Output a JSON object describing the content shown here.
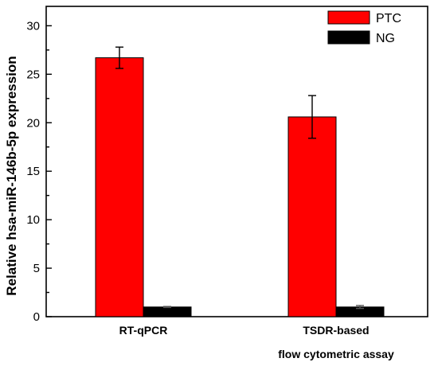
{
  "chart_data": {
    "type": "bar",
    "title": "",
    "xlabel": "",
    "ylabel": "Relative hsa-miR-146b-5p expression",
    "ylim": [
      0,
      32
    ],
    "yticks": [
      0,
      5,
      10,
      15,
      20,
      25,
      30
    ],
    "grid": false,
    "legend_position": "top-right",
    "categories": [
      "RT-qPCR",
      "TSDR-based flow cytometric assay"
    ],
    "category_label_lines": [
      [
        "RT-qPCR"
      ],
      [
        "TSDR-based",
        "flow cytometric assay"
      ]
    ],
    "series": [
      {
        "name": "PTC",
        "color": "#ff0000",
        "values": [
          26.7,
          20.6
        ],
        "errors": [
          1.1,
          2.2
        ]
      },
      {
        "name": "NG",
        "color": "#000000",
        "values": [
          1.0,
          1.0
        ],
        "errors": [
          0.05,
          0.15
        ]
      }
    ]
  }
}
